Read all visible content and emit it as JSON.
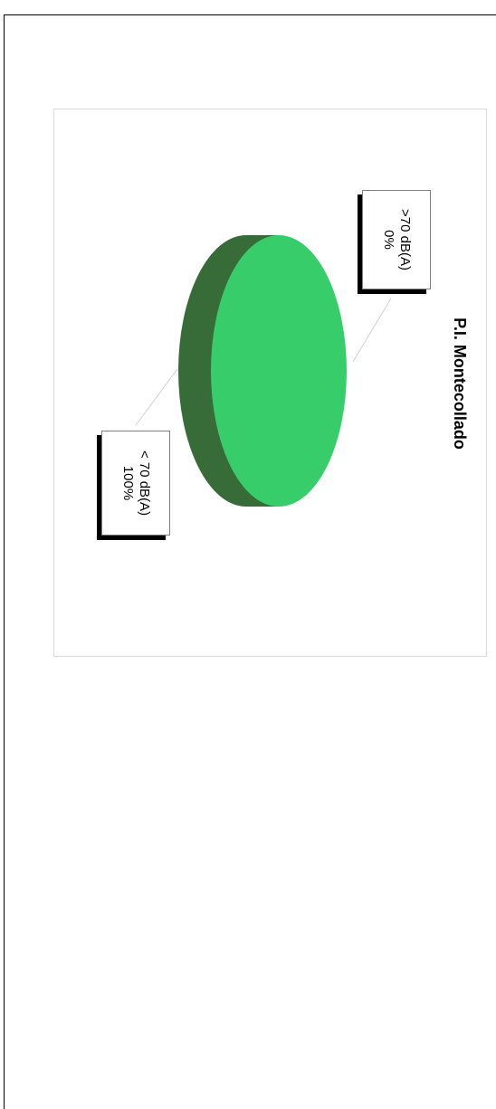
{
  "chart_data": {
    "type": "pie",
    "title": "P.I. Montecollado",
    "orientation": "rotated-90-clockwise",
    "three_d": true,
    "slices": [
      {
        "label": "< 70 dB(A)",
        "value": 100,
        "percent_label": "100%",
        "color": "#37cd6a",
        "side_color": "#376b37"
      },
      {
        "label": ">70 dB(A)",
        "value": 0,
        "percent_label": "0%",
        "color": "#37cd6a",
        "side_color": "#376b37"
      }
    ]
  }
}
